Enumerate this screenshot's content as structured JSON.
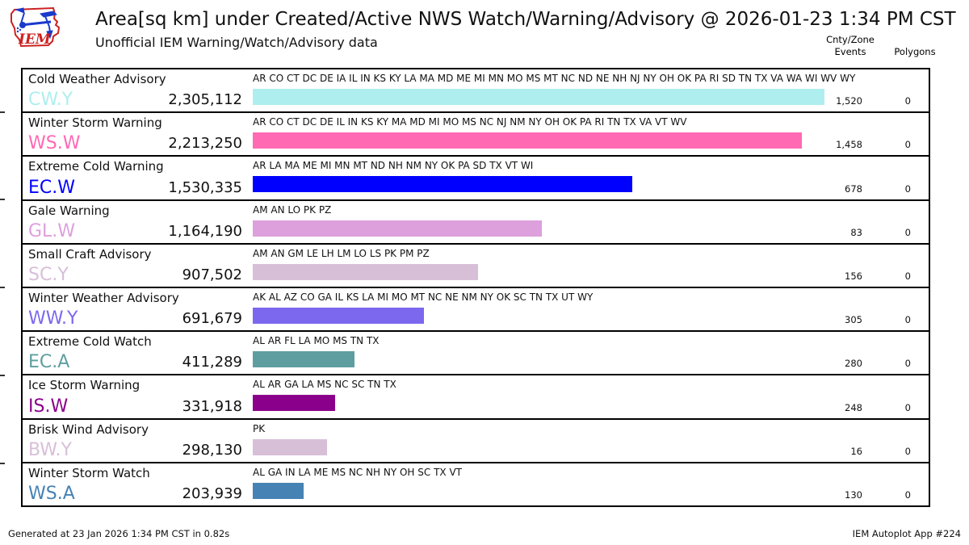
{
  "header": {
    "logo_text": "IEM",
    "title": "Area[sq km] under Created/Active NWS Watch/Warning/Advisory @ 2026-01-23 1:34 PM CST",
    "subtitle": "Unofficial IEM Warning/Watch/Advisory data",
    "col_events_line1": "Cnty/Zone",
    "col_events_line2": "Events",
    "col_polygons": "Polygons"
  },
  "footer": {
    "generated": "Generated at 23 Jan 2026 1:34 PM CST in 0.82s",
    "app": "IEM Autoplot App #224"
  },
  "chart_data": {
    "type": "bar",
    "orientation": "horizontal",
    "title": "Area[sq km] under Created/Active NWS Watch/Warning/Advisory @ 2026-01-23 1:34 PM CST",
    "subtitle": "Unofficial IEM Warning/Watch/Advisory data",
    "value_unit": "sq km",
    "legend_position": "none",
    "grid": false,
    "categories": [
      "Cold Weather Advisory",
      "Winter Storm Warning",
      "Extreme Cold Warning",
      "Gale Warning",
      "Small Craft Advisory",
      "Winter Weather Advisory",
      "Extreme Cold Watch",
      "Ice Storm Warning",
      "Brisk Wind Advisory",
      "Winter Storm Watch"
    ],
    "values": [
      2305112,
      2213250,
      1530335,
      1164190,
      907502,
      691679,
      411289,
      331918,
      298130,
      203939
    ],
    "rows": [
      {
        "name": "Cold Weather Advisory",
        "code": "CW.Y",
        "area_sqkm": 2305112,
        "area_label": "2,305,112",
        "states": "AR CO CT DC DE IA IL IN KS KY LA MA MD ME MI MN MO MS MT NC ND NE NH NJ NY OH OK PA RI SD TN TX VA WA WI WV WY",
        "events": "1,520",
        "polygons": "0",
        "color": "#AFEEEE"
      },
      {
        "name": "Winter Storm Warning",
        "code": "WS.W",
        "area_sqkm": 2213250,
        "area_label": "2,213,250",
        "states": "AR CO CT DC DE IL IN KS KY MA MD MI MO MS NC NJ NM NY OH OK PA RI TN TX VA VT WV",
        "events": "1,458",
        "polygons": "0",
        "color": "#FF69B4"
      },
      {
        "name": "Extreme Cold Warning",
        "code": "EC.W",
        "area_sqkm": 1530335,
        "area_label": "1,530,335",
        "states": "AR LA MA ME MI MN MT ND NH NM NY OK PA SD TX VT WI",
        "events": "678",
        "polygons": "0",
        "color": "#0000FF"
      },
      {
        "name": "Gale Warning",
        "code": "GL.W",
        "area_sqkm": 1164190,
        "area_label": "1,164,190",
        "states": "AM AN LO PK PZ",
        "events": "83",
        "polygons": "0",
        "color": "#DDA0DD"
      },
      {
        "name": "Small Craft Advisory",
        "code": "SC.Y",
        "area_sqkm": 907502,
        "area_label": "907,502",
        "states": "AM AN GM LE LH LM LO LS PK PM PZ",
        "events": "156",
        "polygons": "0",
        "color": "#D8BFD8"
      },
      {
        "name": "Winter Weather Advisory",
        "code": "WW.Y",
        "area_sqkm": 691679,
        "area_label": "691,679",
        "states": "AK AL AZ CO GA IL KS LA MI MO MT NC NE NM NY OK SC TN TX UT WY",
        "events": "305",
        "polygons": "0",
        "color": "#7B68EE"
      },
      {
        "name": "Extreme Cold Watch",
        "code": "EC.A",
        "area_sqkm": 411289,
        "area_label": "411,289",
        "states": "AL AR FL LA MO MS TN TX",
        "events": "280",
        "polygons": "0",
        "color": "#5F9EA0"
      },
      {
        "name": "Ice Storm Warning",
        "code": "IS.W",
        "area_sqkm": 331918,
        "area_label": "331,918",
        "states": "AL AR GA LA MS NC SC TN TX",
        "events": "248",
        "polygons": "0",
        "color": "#8B008B"
      },
      {
        "name": "Brisk Wind Advisory",
        "code": "BW.Y",
        "area_sqkm": 298130,
        "area_label": "298,130",
        "states": "PK",
        "events": "16",
        "polygons": "0",
        "color": "#D8BFD8"
      },
      {
        "name": "Winter Storm Watch",
        "code": "WS.A",
        "area_sqkm": 203939,
        "area_label": "203,939",
        "states": "AL GA IN LA ME MS NC NH NY OH SC TX VT",
        "events": "130",
        "polygons": "0",
        "color": "#4682B4"
      }
    ]
  }
}
